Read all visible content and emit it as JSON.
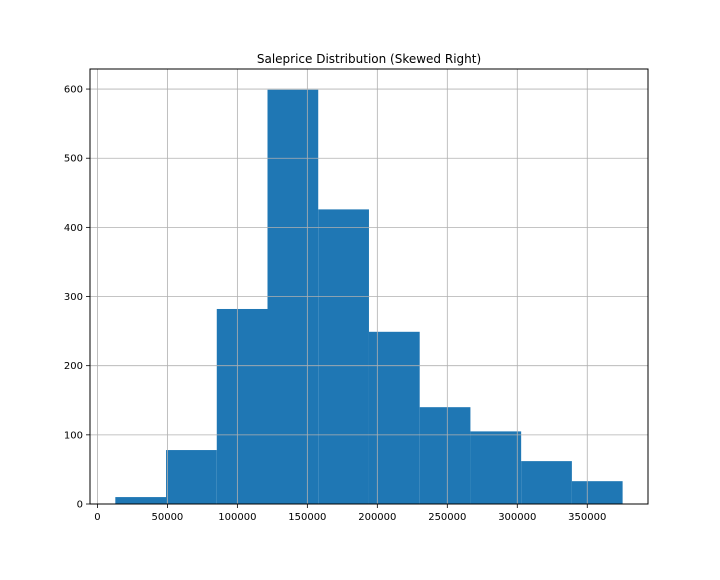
{
  "chart_data": {
    "type": "bar",
    "title": "Saleprice Distribution (Skewed Right)",
    "xlabel": "",
    "ylabel": "",
    "bin_edges": [
      12789,
      49036,
      85283,
      121530,
      157777,
      194024,
      230271,
      266518,
      302765,
      339012,
      375259
    ],
    "values": [
      10,
      78,
      282,
      599,
      426,
      249,
      140,
      105,
      62,
      33
    ],
    "xlim": [
      -5300,
      393400
    ],
    "ylim": [
      0,
      629
    ],
    "xticks": [
      0,
      50000,
      100000,
      150000,
      200000,
      250000,
      300000,
      350000
    ],
    "yticks": [
      0,
      100,
      200,
      300,
      400,
      500,
      600
    ],
    "grid": true,
    "legend": "none",
    "bar_color": "#1f77b4",
    "grid_color": "#b0b0b0"
  }
}
